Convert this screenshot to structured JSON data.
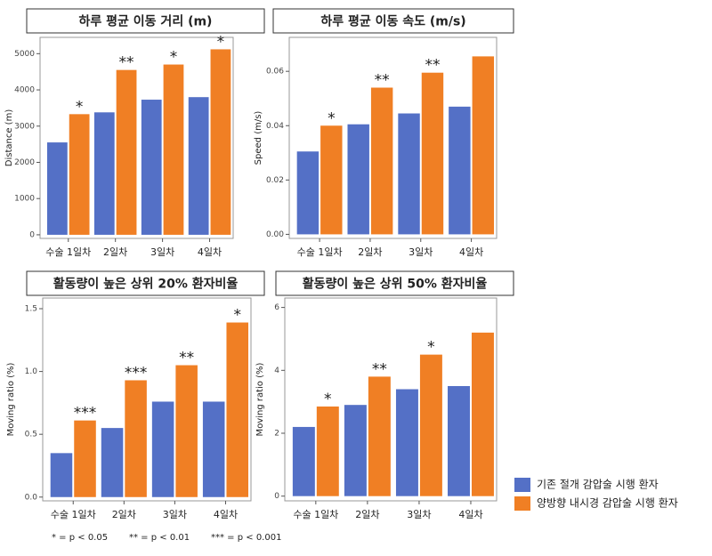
{
  "chart_data": [
    {
      "type": "bar",
      "title": "하루 평균 이동 거리 (m)",
      "ylabel": "Distance (m)",
      "categories": [
        "수술 1일차",
        "2일차",
        "3일차",
        "4일차"
      ],
      "series": [
        {
          "color": "#5470c6",
          "values": [
            2550,
            3380,
            3730,
            3800
          ]
        },
        {
          "color": "#f07f24",
          "values": [
            3330,
            4550,
            4700,
            5120
          ]
        }
      ],
      "annotations": [
        "*",
        "**",
        "*",
        "*"
      ],
      "ylim": [
        -100,
        5450
      ],
      "yticks": [
        0,
        1000,
        2000,
        3000,
        4000,
        5000
      ]
    },
    {
      "type": "bar",
      "title": "하루 평균 이동 속도 (m/s)",
      "ylabel": "Speed (m/s)",
      "categories": [
        "수술 1일차",
        "2일차",
        "3일차",
        "4일차"
      ],
      "series": [
        {
          "color": "#5470c6",
          "values": [
            0.0305,
            0.0405,
            0.0445,
            0.047
          ]
        },
        {
          "color": "#f07f24",
          "values": [
            0.04,
            0.054,
            0.0595,
            0.0655
          ]
        }
      ],
      "annotations": [
        "*",
        "**",
        "**",
        null
      ],
      "ylim": [
        -0.0015,
        0.0725
      ],
      "yticks": [
        {
          "value": 0,
          "label": "0.00"
        },
        {
          "value": 0.02,
          "label": "0.02"
        },
        {
          "value": 0.04,
          "label": "0.04"
        },
        {
          "value": 0.06,
          "label": "0.06"
        }
      ]
    },
    {
      "type": "bar",
      "title": "활동량이 높은 상위 20% 환자비율",
      "ylabel": "Moving ratio (%)",
      "categories": [
        "수술 1일차",
        "2일차",
        "3일차",
        "4일차"
      ],
      "series": [
        {
          "color": "#5470c6",
          "values": [
            0.35,
            0.55,
            0.76,
            0.76
          ]
        },
        {
          "color": "#f07f24",
          "values": [
            0.61,
            0.93,
            1.05,
            1.39
          ]
        }
      ],
      "annotations": [
        "***",
        "***",
        "**",
        "*"
      ],
      "ylim": [
        -0.03,
        1.585
      ],
      "yticks": [
        {
          "value": 0,
          "label": "0.0"
        },
        0.5,
        {
          "value": 1,
          "label": "1.0"
        },
        1.5
      ]
    },
    {
      "type": "bar",
      "title": "활동량이 높은 상위 50% 환자비율",
      "ylabel": "Moving ratio (%)",
      "categories": [
        "수술 1일차",
        "2일차",
        "3일차",
        "4일차"
      ],
      "series": [
        {
          "name": "기존 절개 감압술 시행 환자",
          "color": "#5470c6",
          "values": [
            2.2,
            2.9,
            3.4,
            3.5
          ]
        },
        {
          "name": "양방향 내시경 감압술 시행 환자",
          "color": "#f07f24",
          "values": [
            2.85,
            3.8,
            4.5,
            5.2
          ]
        }
      ],
      "annotations": [
        "*",
        "**",
        "*",
        null
      ],
      "ylim": [
        -0.15,
        6.3
      ],
      "yticks": [
        0,
        2,
        4,
        6
      ]
    }
  ],
  "footnote": [
    "* = p < 0.05",
    "** = p < 0.01",
    "*** = p < 0.001"
  ]
}
